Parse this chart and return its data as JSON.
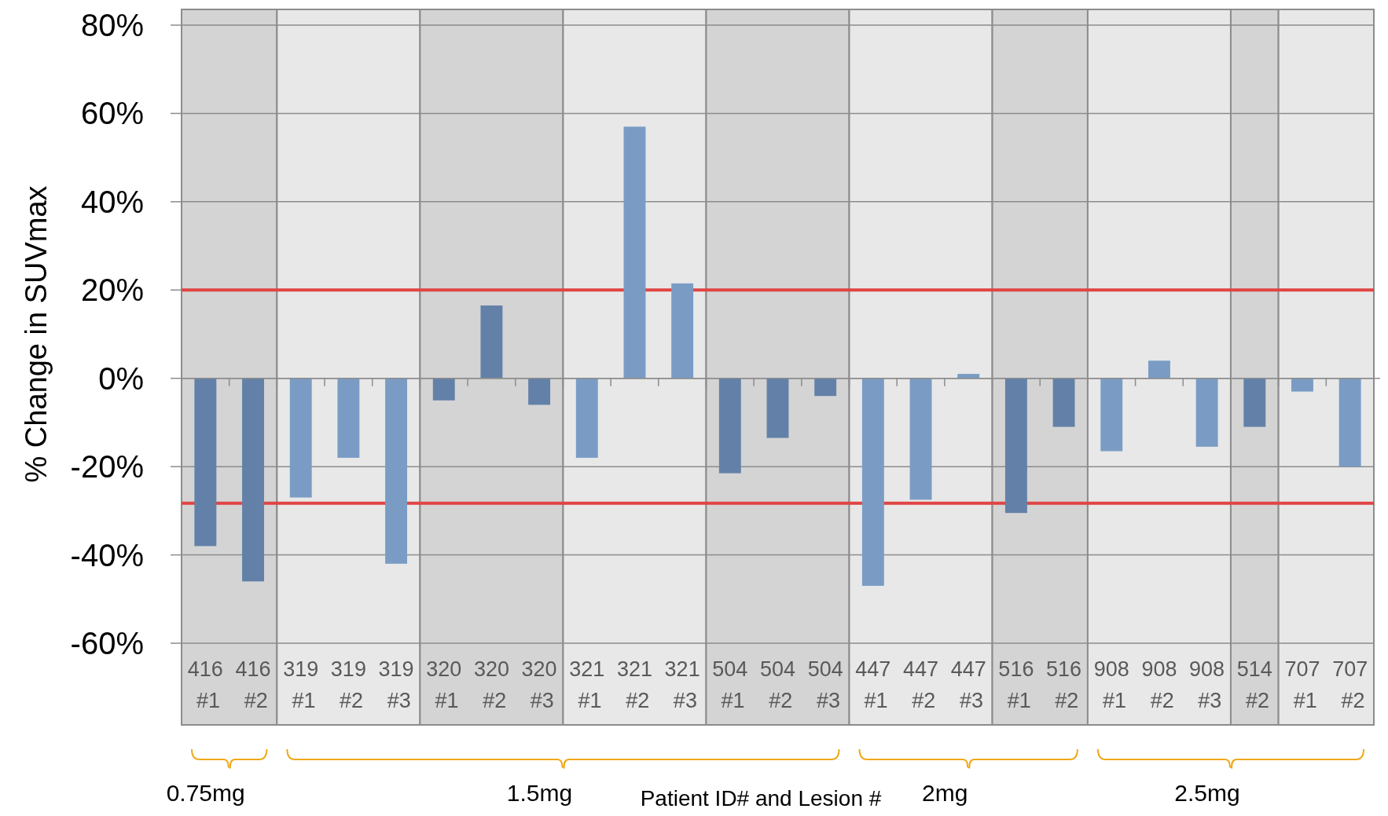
{
  "chart_data": {
    "type": "bar",
    "xlabel": "Patient ID# and Lesion #",
    "ylabel": "% Change in SUVmax",
    "categories": [
      "416 #1",
      "416 #2",
      "319 #1",
      "319 #2",
      "319 #3",
      "320 #1",
      "320 #2",
      "320 #3",
      "321 #1",
      "321 #2",
      "321 #3",
      "504 #1",
      "504 #2",
      "504 #3",
      "447 #1",
      "447 #2",
      "447 #3",
      "516 #1",
      "516 #2",
      "908 #1",
      "908 #2",
      "908 #3",
      "514 #2",
      "707 #1",
      "707 #2"
    ],
    "values": [
      -38,
      -46,
      -27,
      -18,
      -42,
      -5,
      16.5,
      -6,
      -18,
      57,
      21.5,
      -21.5,
      -13.5,
      -4,
      -47,
      -27.5,
      1,
      -30.5,
      -11,
      -16.5,
      4,
      -15.5,
      -11,
      -3,
      -20
    ],
    "colors": [
      "#6381a8",
      "#6381a8",
      "#7a9cc4",
      "#7a9cc4",
      "#7a9cc4",
      "#6381a8",
      "#6381a8",
      "#6381a8",
      "#7a9cc4",
      "#7a9cc4",
      "#7a9cc4",
      "#6381a8",
      "#6381a8",
      "#6381a8",
      "#7a9cc4",
      "#7a9cc4",
      "#7a9cc4",
      "#6381a8",
      "#6381a8",
      "#7a9cc4",
      "#7a9cc4",
      "#7a9cc4",
      "#6381a8",
      "#7a9cc4",
      "#7a9cc4"
    ],
    "ylim": [
      -60,
      80
    ],
    "yticks": [
      {
        "value": -60,
        "label": "-60%"
      },
      {
        "value": -40,
        "label": "-40%"
      },
      {
        "value": -20,
        "label": "-20%"
      },
      {
        "value": 0,
        "label": "0%"
      },
      {
        "value": 20,
        "label": "20%"
      },
      {
        "value": 40,
        "label": "40%"
      },
      {
        "value": 60,
        "label": "60%"
      },
      {
        "value": 80,
        "label": "80%"
      }
    ],
    "grid": "y",
    "ref_lines": [
      {
        "axis": "y",
        "value": 20,
        "color": "#e04444"
      },
      {
        "axis": "y",
        "value": -28.3,
        "color": "#e04444"
      }
    ],
    "bands": [
      {
        "axis": "x",
        "from": "416 #1",
        "to": "416 #2",
        "color": "#d4d4d4"
      },
      {
        "axis": "x",
        "from": "319 #1",
        "to": "319 #3",
        "color": "#e8e8e8"
      },
      {
        "axis": "x",
        "from": "320 #1",
        "to": "320 #3",
        "color": "#d4d4d4"
      },
      {
        "axis": "x",
        "from": "321 #1",
        "to": "321 #3",
        "color": "#e8e8e8"
      },
      {
        "axis": "x",
        "from": "504 #1",
        "to": "504 #3",
        "color": "#d4d4d4"
      },
      {
        "axis": "x",
        "from": "447 #1",
        "to": "447 #3",
        "color": "#e8e8e8"
      },
      {
        "axis": "x",
        "from": "516 #1",
        "to": "516 #2",
        "color": "#d4d4d4"
      },
      {
        "axis": "x",
        "from": "908 #1",
        "to": "908 #3",
        "color": "#e8e8e8"
      },
      {
        "axis": "x",
        "from": "514 #2",
        "to": "514 #2",
        "color": "#d4d4d4"
      },
      {
        "axis": "x",
        "from": "707 #1",
        "to": "707 #2",
        "color": "#e8e8e8"
      }
    ],
    "annotations": [
      "0.75mg",
      "1.5mg",
      "2mg",
      "2.5mg"
    ]
  }
}
